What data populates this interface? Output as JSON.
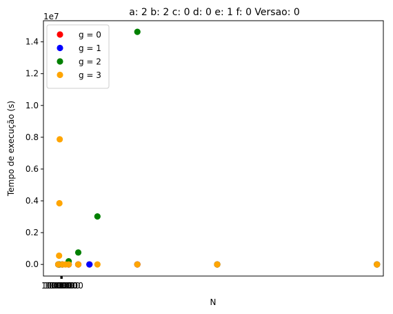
{
  "chart_data": {
    "type": "scatter",
    "title": "a: 2 b: 2 c: 0 d: 0 e: 1 f: 0 Versao: 0",
    "xlabel": "N",
    "ylabel": "Tempo de execução (s)",
    "y_scale_label": "1e7",
    "x_tick_labels": [
      "1",
      "1000",
      "10000",
      "100000",
      "1000000",
      "10000000"
    ],
    "y_ticks": [
      0.0,
      0.2,
      0.4,
      0.6,
      0.8,
      1.0,
      1.2,
      1.4
    ],
    "y_tick_labels": [
      "0.0",
      "0.2",
      "0.4",
      "0.6",
      "0.8",
      "1.0",
      "1.2",
      "1.4"
    ],
    "xlim": [
      -880,
      20400
    ],
    "ylim": [
      -0.073,
      1.533
    ],
    "legend_position": "upper-left",
    "series": [
      {
        "name": "g = 0",
        "color": "#ff0000",
        "points": [
          [
            50,
            0.0
          ],
          [
            100,
            0.0
          ],
          [
            300,
            0.0
          ],
          [
            700,
            0.0
          ],
          [
            1300,
            0.0
          ],
          [
            2000,
            0.0
          ],
          [
            5000,
            0.0
          ],
          [
            10000,
            0.0
          ],
          [
            20000,
            0.0
          ]
        ]
      },
      {
        "name": "g = 1",
        "color": "#0000ff",
        "points": [
          [
            50,
            0.0
          ],
          [
            100,
            0.0
          ],
          [
            300,
            0.0
          ],
          [
            700,
            0.0
          ],
          [
            1300,
            0.0
          ],
          [
            2000,
            0.0
          ],
          [
            5000,
            0.0
          ],
          [
            10000,
            0.0
          ],
          [
            20000,
            0.0
          ]
        ]
      },
      {
        "name": "g = 2",
        "color": "#008000",
        "points": [
          [
            50,
            0.0
          ],
          [
            100,
            0.0
          ],
          [
            300,
            0.0
          ],
          [
            700,
            0.02
          ],
          [
            1300,
            0.075
          ],
          [
            2500,
            0.302
          ],
          [
            5000,
            1.463
          ],
          [
            10000,
            0.0
          ],
          [
            20000,
            0.0
          ]
        ]
      },
      {
        "name": "g = 3",
        "color": "#ffa500",
        "points": [
          [
            50,
            0.0
          ],
          [
            100,
            0.055
          ],
          [
            120,
            0.385
          ],
          [
            140,
            0.787
          ],
          [
            300,
            0.0
          ],
          [
            500,
            0.0
          ],
          [
            700,
            0.0
          ],
          [
            1300,
            0.0
          ],
          [
            2500,
            0.0
          ],
          [
            5000,
            0.0
          ],
          [
            10000,
            0.0
          ],
          [
            20000,
            0.0
          ]
        ]
      }
    ]
  }
}
